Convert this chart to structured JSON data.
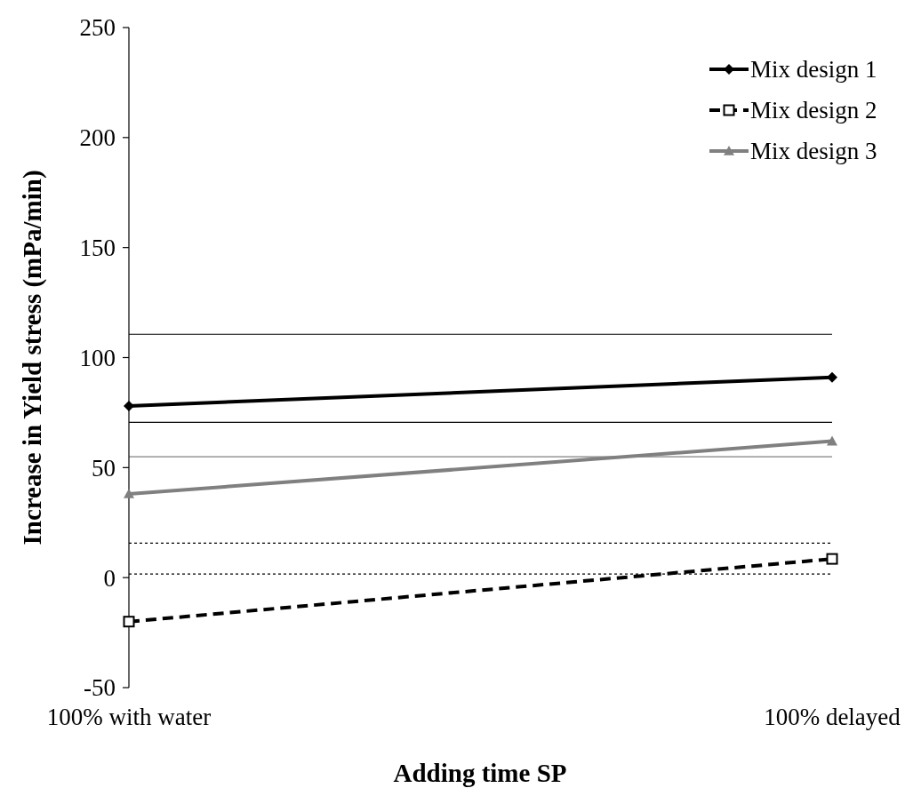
{
  "chart_data": {
    "type": "line",
    "xlabel": "Adding time SP",
    "ylabel": "Increase in Yield stress (mPa/min)",
    "categories": [
      "100% with water",
      "100% delayed"
    ],
    "ylim": [
      -50,
      250
    ],
    "yticks": [
      -50,
      0,
      50,
      100,
      150,
      200,
      250
    ],
    "grid": false,
    "legend": "top right",
    "series": [
      {
        "name": "Mix design 1",
        "color": "#000000",
        "values": [
          78,
          91
        ],
        "marker": "diamond",
        "line_style": "solid"
      },
      {
        "name": "Mix design 2",
        "color": "#000000",
        "values": [
          -20,
          8.5
        ],
        "marker": "square",
        "line_style": "dashed"
      },
      {
        "name": "Mix design 3",
        "color": "#808080",
        "values": [
          38,
          62
        ],
        "marker": "triangle",
        "line_style": "solid"
      }
    ],
    "ref_lines": [
      {
        "axis": "y",
        "value": 110.6,
        "color": "#000000",
        "line_style": "solid"
      },
      {
        "axis": "y",
        "value": 70.6,
        "color": "#000000",
        "line_style": "solid"
      },
      {
        "axis": "y",
        "value": 54.9,
        "color": "#808080",
        "line_style": "solid"
      },
      {
        "axis": "y",
        "value": 15.7,
        "color": "#000000",
        "line_style": "dotted"
      },
      {
        "axis": "y",
        "value": 1.6,
        "color": "#000000",
        "line_style": "dotted"
      }
    ]
  }
}
